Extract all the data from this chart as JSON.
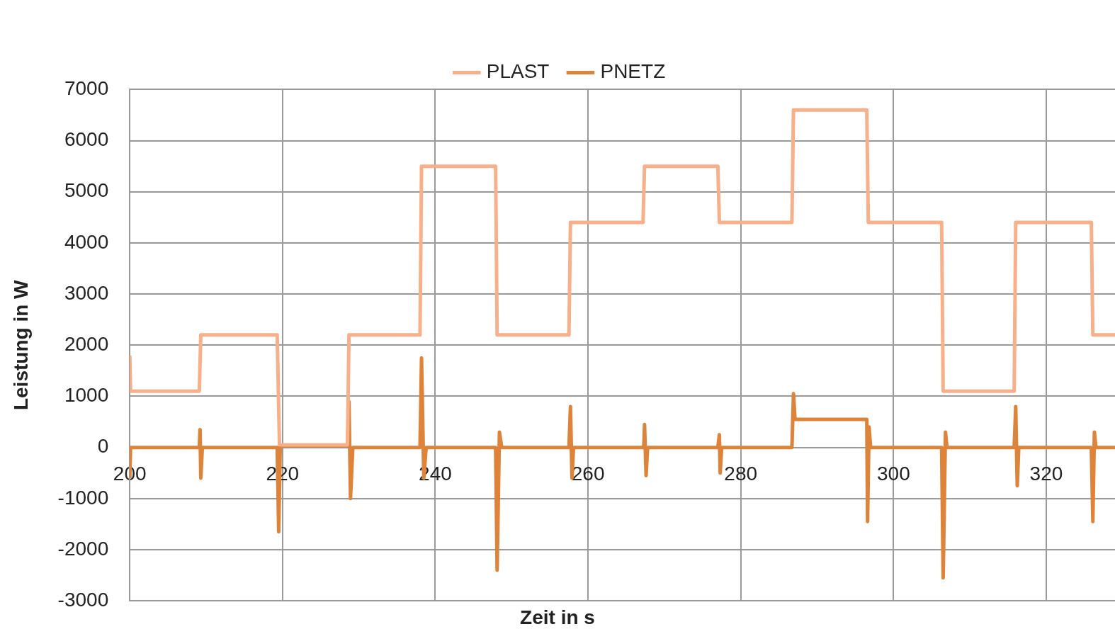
{
  "chart_data": {
    "type": "line",
    "xlabel": "Zeit in s",
    "ylabel": "Leistung in W",
    "xlim": [
      200,
      329
    ],
    "xticks": [
      200,
      220,
      240,
      260,
      280,
      300,
      320
    ],
    "ylim": [
      -3000,
      7000
    ],
    "yticks": [
      -3000,
      -2000,
      -1000,
      0,
      1000,
      2000,
      3000,
      4000,
      5000,
      6000,
      7000
    ],
    "grid": true,
    "legend": "top",
    "marker": "none",
    "line_style": "solid",
    "series": [
      {
        "name": "PLAST",
        "color": "#f7b08a",
        "x": [
          200,
          200.1,
          209.1,
          209.3,
          219.3,
          219.6,
          228.5,
          228.7,
          238,
          238.2,
          247.9,
          248.1,
          257.5,
          257.7,
          267.2,
          267.4,
          277,
          277.2,
          286.7,
          286.9,
          296.5,
          296.7,
          306.3,
          306.5,
          315.8,
          316,
          325.9,
          326.1,
          329
        ],
        "values": [
          1800,
          1100,
          1100,
          2200,
          2200,
          50,
          50,
          2200,
          2200,
          5500,
          5500,
          2200,
          2200,
          4400,
          4400,
          5500,
          5500,
          4400,
          4400,
          6600,
          6600,
          4400,
          4400,
          1100,
          1100,
          4400,
          4400,
          2200,
          2200
        ]
      },
      {
        "name": "PNETZ",
        "color": "#de833a",
        "x": [
          200,
          200.1,
          209.1,
          209.2,
          209.3,
          209.5,
          219.3,
          219.5,
          219.7,
          228.5,
          228.7,
          228.9,
          229.2,
          238,
          238.2,
          238.5,
          238.8,
          247.9,
          248.1,
          248.4,
          248.7,
          257.5,
          257.7,
          257.9,
          258.1,
          267.3,
          267.4,
          267.6,
          267.8,
          277,
          277.2,
          277.3,
          277.5,
          286.7,
          286.9,
          287.1,
          296.5,
          296.6,
          296.8,
          297,
          306.3,
          306.5,
          306.8,
          307,
          315.8,
          316,
          316.2,
          316.4,
          325.9,
          326.1,
          326.3,
          326.5,
          329
        ],
        "values": [
          -600,
          0,
          0,
          350,
          -600,
          0,
          0,
          -1650,
          30,
          30,
          900,
          -1000,
          0,
          0,
          1750,
          -600,
          0,
          0,
          -2400,
          300,
          0,
          0,
          800,
          -600,
          0,
          0,
          450,
          -550,
          0,
          0,
          250,
          -500,
          0,
          0,
          1050,
          550,
          550,
          -1450,
          400,
          0,
          0,
          -2550,
          300,
          0,
          0,
          800,
          -750,
          0,
          0,
          -1450,
          300,
          0,
          0
        ]
      }
    ]
  }
}
